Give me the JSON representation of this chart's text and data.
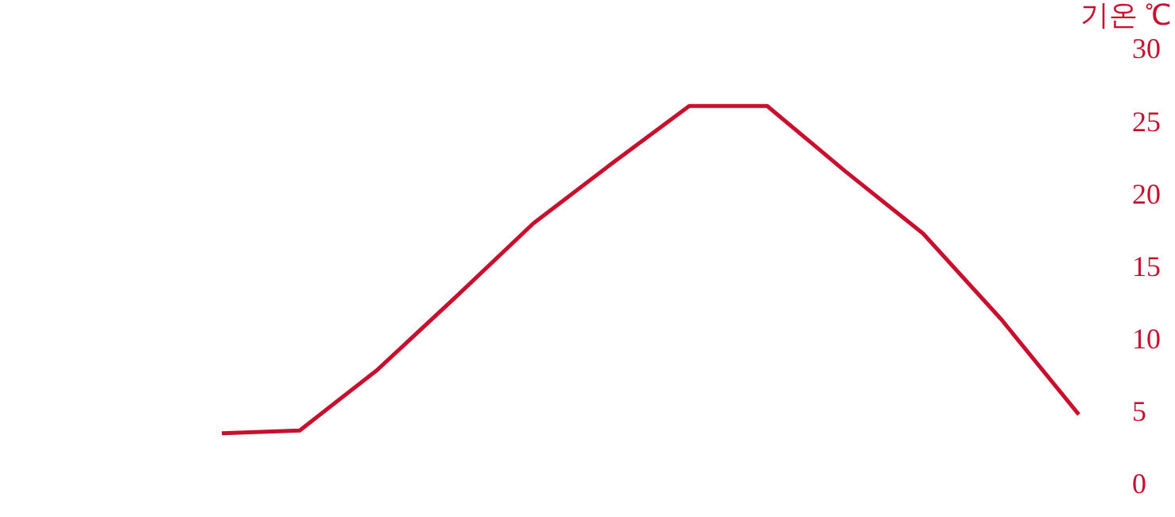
{
  "chart_data": {
    "type": "line",
    "ylabel": "기온 ℃",
    "categories": [
      null,
      null,
      null,
      null,
      null,
      null,
      null,
      null,
      null,
      null,
      null,
      null
    ],
    "series": [
      {
        "color": "#c8102e",
        "values": [
          3.6,
          3.8,
          8.0,
          13.0,
          18.1,
          22.2,
          26.2,
          26.2,
          21.7,
          17.4,
          11.5,
          4.9
        ]
      }
    ],
    "ylim": [
      0,
      30
    ],
    "yticks": [
      0,
      5,
      10,
      15,
      20,
      25,
      30
    ],
    "grid": false,
    "legend": false,
    "tick_labels": "y",
    "marker": "none",
    "line_style": "solid"
  }
}
